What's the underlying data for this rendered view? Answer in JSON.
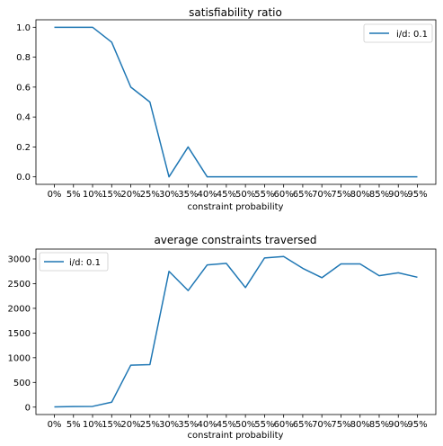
{
  "chart_data": [
    {
      "type": "line",
      "title": "satisfiability ratio",
      "xlabel": "constraint probability",
      "ylabel": "",
      "categories": [
        "0%",
        "5%",
        "10%",
        "15%",
        "20%",
        "25%",
        "30%",
        "35%",
        "40%",
        "45%",
        "50%",
        "55%",
        "60%",
        "65%",
        "70%",
        "75%",
        "80%",
        "85%",
        "90%",
        "95%"
      ],
      "yticks": [
        "0.0",
        "0.2",
        "0.4",
        "0.6",
        "0.8",
        "1.0"
      ],
      "ylim": [
        -0.05,
        1.05
      ],
      "legend_position": "upper right",
      "series": [
        {
          "name": "i/d: 0.1",
          "color": "#1f77b4",
          "values": [
            1.0,
            1.0,
            1.0,
            0.9,
            0.6,
            0.5,
            0.0,
            0.2,
            0.0,
            0.0,
            0.0,
            0.0,
            0.0,
            0.0,
            0.0,
            0.0,
            0.0,
            0.0,
            0.0,
            0.0
          ]
        }
      ]
    },
    {
      "type": "line",
      "title": "average constraints traversed",
      "xlabel": "constraint probability",
      "ylabel": "",
      "categories": [
        "0%",
        "5%",
        "10%",
        "15%",
        "20%",
        "25%",
        "30%",
        "35%",
        "40%",
        "45%",
        "50%",
        "55%",
        "60%",
        "65%",
        "70%",
        "75%",
        "80%",
        "85%",
        "90%",
        "95%"
      ],
      "yticks": [
        "0",
        "500",
        "1000",
        "1500",
        "2000",
        "2500",
        "3000"
      ],
      "ylim": [
        -150,
        3200
      ],
      "legend_position": "upper left",
      "series": [
        {
          "name": "i/d: 0.1",
          "color": "#1f77b4",
          "values": [
            5,
            12,
            15,
            100,
            850,
            860,
            2750,
            2360,
            2880,
            2910,
            2420,
            3020,
            3050,
            2810,
            2620,
            2900,
            2900,
            2660,
            2720,
            2630
          ]
        }
      ]
    }
  ]
}
